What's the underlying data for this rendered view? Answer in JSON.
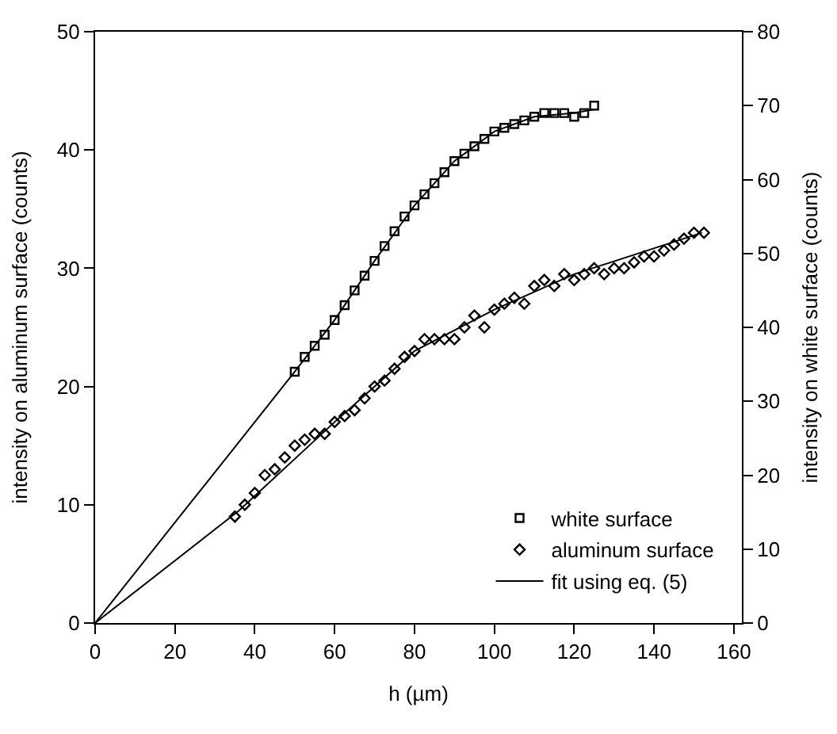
{
  "chart_data": {
    "type": "scatter",
    "xlabel": "h (µm)",
    "ylabel": "intensity on aluminum surface (counts)",
    "y2label": "intensity on white surface (counts)",
    "xlim": [
      0,
      162
    ],
    "xticks": [
      0,
      20,
      40,
      60,
      80,
      100,
      120,
      140,
      160
    ],
    "ylim": [
      0,
      50
    ],
    "yticks": [
      0,
      10,
      20,
      30,
      40,
      50
    ],
    "y2lim": [
      0,
      80
    ],
    "y2ticks": [
      0,
      10,
      20,
      30,
      40,
      50,
      60,
      70,
      80
    ],
    "legend": "bottom right",
    "series": [
      {
        "name": "white surface",
        "axis": "y2",
        "marker": "square",
        "color": "#000000",
        "x": [
          50,
          52.5,
          55,
          57.5,
          60,
          62.5,
          65,
          67.5,
          70,
          72.5,
          75,
          77.5,
          80,
          82.5,
          85,
          87.5,
          90,
          92.5,
          95,
          97.5,
          100,
          102.5,
          105,
          107.5,
          110,
          112.5,
          115,
          117.5,
          120,
          122.5,
          125
        ],
        "values": [
          34,
          36,
          37.5,
          39,
          41,
          43,
          45,
          47,
          49,
          51,
          53,
          55,
          56.5,
          58,
          59.5,
          61,
          62.5,
          63.5,
          64.5,
          65.5,
          66.5,
          67,
          67.5,
          68,
          68.5,
          69,
          69,
          69,
          68.5,
          69,
          70
        ]
      },
      {
        "name": "aluminum surface",
        "marker": "diamond",
        "color": "#000000",
        "x": [
          35,
          37.5,
          40,
          42.5,
          45,
          47.5,
          50,
          52.5,
          55,
          57.5,
          60,
          62.5,
          65,
          67.5,
          70,
          72.5,
          75,
          77.5,
          80,
          82.5,
          85,
          87.5,
          90,
          92.5,
          95,
          97.5,
          100,
          102.5,
          105,
          107.5,
          110,
          112.5,
          115,
          117.5,
          120,
          122.5,
          125,
          127.5,
          130,
          132.5,
          135,
          137.5,
          140,
          142.5,
          145,
          147.5,
          150,
          152.5
        ],
        "values": [
          9,
          10,
          11,
          12.5,
          13,
          14,
          15,
          15.5,
          16,
          16,
          17,
          17.5,
          18,
          19,
          20,
          20.5,
          21.5,
          22.5,
          23,
          24,
          24,
          24,
          24,
          25,
          26,
          25,
          26.5,
          27,
          27.5,
          27,
          28.5,
          29,
          28.5,
          29.5,
          29,
          29.5,
          30,
          29.5,
          30,
          30,
          30.5,
          31,
          31,
          31.5,
          32,
          32.5,
          33,
          33
        ]
      },
      {
        "name": "fit using eq. (5)",
        "type": "line",
        "axis": "y2",
        "marker": "none",
        "line_style": "solid",
        "color": "#000000",
        "x": [
          0,
          25,
          50,
          60,
          70,
          80,
          90,
          100,
          110,
          120,
          125
        ],
        "values": [
          0,
          17,
          34,
          41,
          49,
          56.5,
          62.5,
          66.5,
          68.5,
          69,
          69.5
        ]
      },
      {
        "type": "line",
        "marker": "none",
        "line_style": "solid",
        "color": "#000000",
        "x": [
          0,
          36,
          60,
          80,
          100,
          120,
          152
        ],
        "values": [
          0,
          9.5,
          17,
          23,
          26.5,
          29.5,
          33
        ]
      }
    ]
  }
}
